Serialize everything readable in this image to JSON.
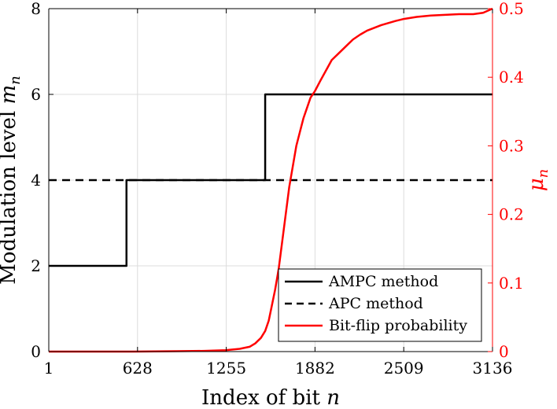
{
  "chart_data": {
    "type": "line",
    "title": "",
    "xlabel": "Index of bit n",
    "xlabel_parts": [
      "Index of bit ",
      "n"
    ],
    "ylabel_left": "Modulation level m_n",
    "ylabel_left_parts": [
      "Modulation level ",
      "m",
      "n"
    ],
    "ylabel_right": "μ_n",
    "ylabel_right_parts": [
      "μ",
      "n"
    ],
    "xlim": [
      1,
      3136
    ],
    "ylim_left": [
      0,
      8
    ],
    "ylim_right": [
      0,
      0.5
    ],
    "x_ticks": [
      1,
      628,
      1255,
      1882,
      2509,
      3136
    ],
    "x_tick_labels": [
      "1",
      "628",
      "1255",
      "1882",
      "2509",
      "3136"
    ],
    "y_left_ticks": [
      0,
      2,
      4,
      6,
      8
    ],
    "y_left_tick_labels": [
      "0",
      "2",
      "4",
      "6",
      "8"
    ],
    "y_right_ticks": [
      0,
      0.1,
      0.2,
      0.3,
      0.4,
      0.5
    ],
    "y_right_tick_labels": [
      "0",
      "0.1",
      "0.2",
      "0.3",
      "0.4",
      "0.5"
    ],
    "grid": true,
    "legend_position": "bottom-right",
    "series": [
      {
        "name": "AMPC method",
        "axis": "left",
        "style": "solid",
        "color": "#000000",
        "step": true,
        "x": [
          1,
          550,
          550,
          1530,
          1530,
          3136
        ],
        "y": [
          2,
          2,
          4,
          4,
          6,
          6
        ]
      },
      {
        "name": "APC method",
        "axis": "left",
        "style": "dashed",
        "color": "#000000",
        "x": [
          1,
          3136
        ],
        "y": [
          4,
          4
        ]
      },
      {
        "name": "Bit-flip probability",
        "axis": "right",
        "style": "solid",
        "color": "#ff0000",
        "x": [
          1,
          300,
          600,
          900,
          1100,
          1250,
          1350,
          1420,
          1460,
          1500,
          1530,
          1555,
          1575,
          1600,
          1625,
          1650,
          1675,
          1700,
          1725,
          1750,
          1775,
          1800,
          1825,
          1850,
          1882,
          1920,
          1960,
          2000,
          2050,
          2100,
          2150,
          2200,
          2250,
          2300,
          2350,
          2400,
          2450,
          2509,
          2600,
          2700,
          2800,
          2900,
          3000,
          3070,
          3136
        ],
        "y": [
          0,
          0,
          0,
          0.0005,
          0.001,
          0.002,
          0.004,
          0.007,
          0.012,
          0.02,
          0.03,
          0.045,
          0.065,
          0.09,
          0.12,
          0.16,
          0.2,
          0.24,
          0.27,
          0.3,
          0.32,
          0.34,
          0.355,
          0.37,
          0.38,
          0.395,
          0.41,
          0.425,
          0.435,
          0.445,
          0.455,
          0.462,
          0.468,
          0.472,
          0.476,
          0.479,
          0.482,
          0.485,
          0.488,
          0.49,
          0.491,
          0.492,
          0.492,
          0.494,
          0.5
        ]
      }
    ],
    "colors": {
      "black": "#000000",
      "red": "#ff0000",
      "grid": "#dcdcdc"
    }
  }
}
